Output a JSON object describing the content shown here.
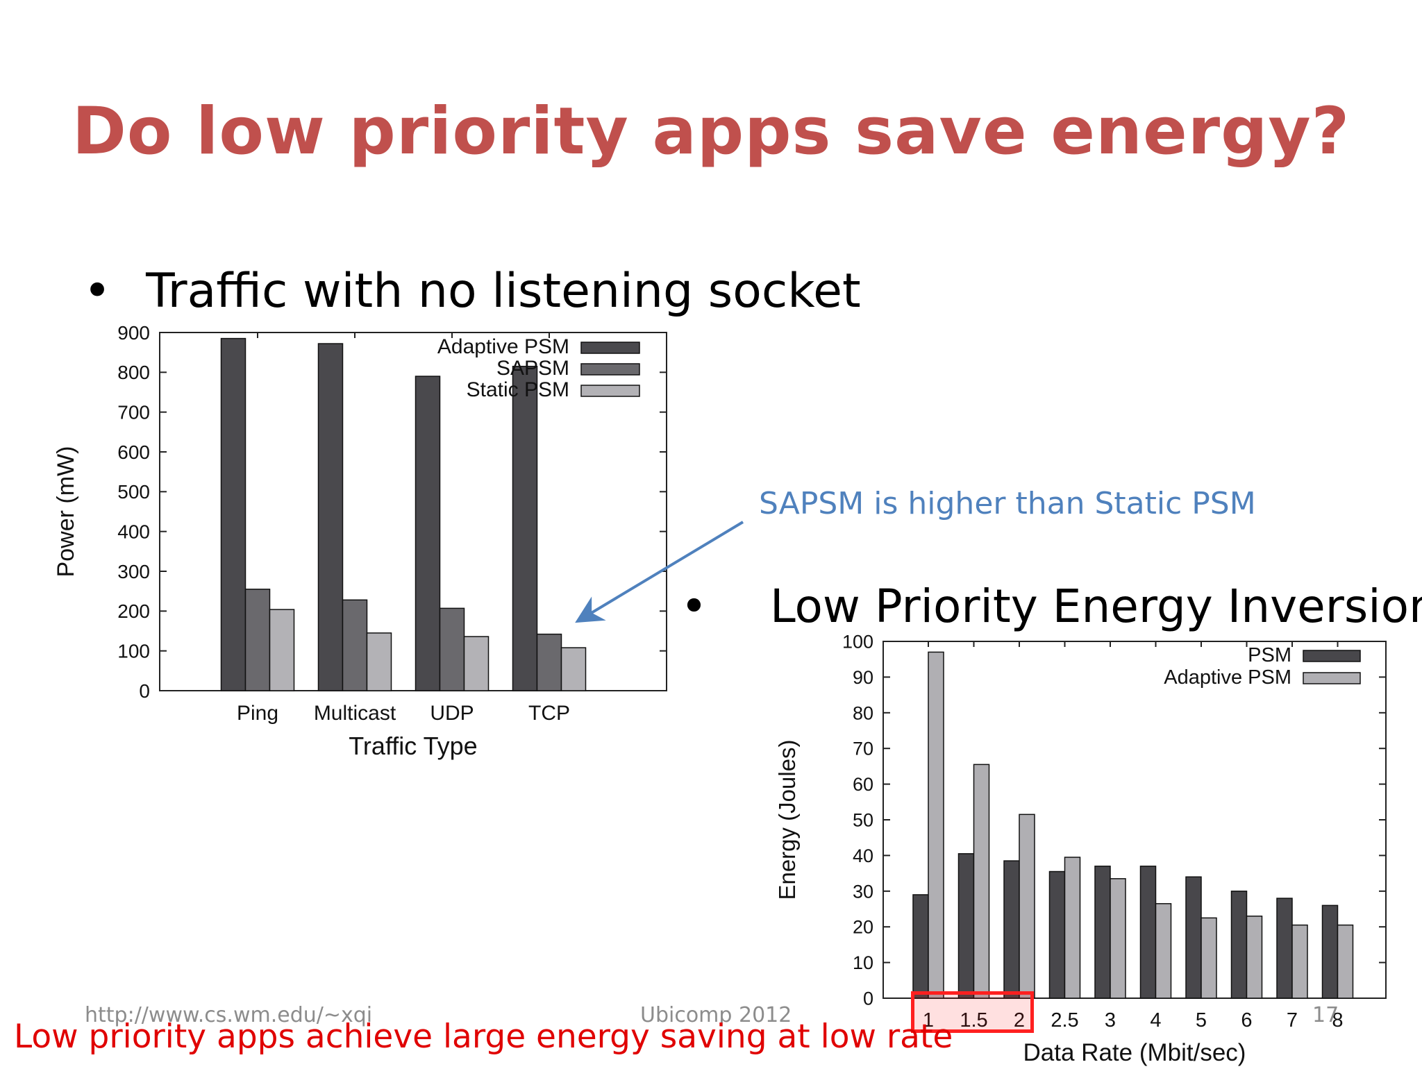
{
  "slide": {
    "title": "Do low priority apps save energy?",
    "bullet1": "Traffic with no listening socket",
    "bullet2": "Low Priority Energy Inversion",
    "bullet_symbol": "•",
    "callout": "SAPSM is higher than Static PSM",
    "bottom_note": "Low priority apps achieve large energy saving at low rate",
    "footer_url": "http://www.cs.wm.edu/~xqi",
    "footer_conf": "Ubicomp 2012",
    "page_number": "17",
    "colors": {
      "title": "#c0504d",
      "callout": "#4f81bd",
      "note": "#e00000",
      "highlight": "#ff2020"
    }
  },
  "chart_data": [
    {
      "type": "bar",
      "xlabel": "Traffic Type",
      "ylabel": "Power (mW)",
      "ylim": [
        0,
        900
      ],
      "yticks": [
        0,
        100,
        200,
        300,
        400,
        500,
        600,
        700,
        800,
        900
      ],
      "categories": [
        "Ping",
        "Multicast",
        "UDP",
        "TCP"
      ],
      "series": [
        {
          "name": "Adaptive PSM",
          "color": "#4a494d",
          "values": [
            885,
            872,
            790,
            815
          ]
        },
        {
          "name": "SAPSM",
          "color": "#6a696d",
          "values": [
            255,
            228,
            207,
            142
          ]
        },
        {
          "name": "Static PSM",
          "color": "#b3b2b6",
          "values": [
            204,
            145,
            136,
            108
          ]
        }
      ],
      "legend": "top-right"
    },
    {
      "type": "bar",
      "xlabel": "Data Rate (Mbit/sec)",
      "ylabel": "Energy (Joules)",
      "ylim": [
        0,
        100
      ],
      "yticks": [
        0,
        10,
        20,
        30,
        40,
        50,
        60,
        70,
        80,
        90,
        100
      ],
      "categories": [
        "1",
        "1.5",
        "2",
        "2.5",
        "3",
        "4",
        "5",
        "6",
        "7",
        "8"
      ],
      "series": [
        {
          "name": "PSM",
          "color": "#48474b",
          "values": [
            29,
            40.5,
            38.5,
            35.5,
            37,
            37,
            34,
            30,
            28,
            26
          ]
        },
        {
          "name": "Adaptive PSM",
          "color": "#b0afb3",
          "values": [
            97,
            65.5,
            51.5,
            39.5,
            33.5,
            26.5,
            22.5,
            23,
            20.5,
            20.5
          ]
        }
      ],
      "highlighted_categories": [
        "1",
        "1.5",
        "2"
      ],
      "legend": "top-right"
    }
  ]
}
